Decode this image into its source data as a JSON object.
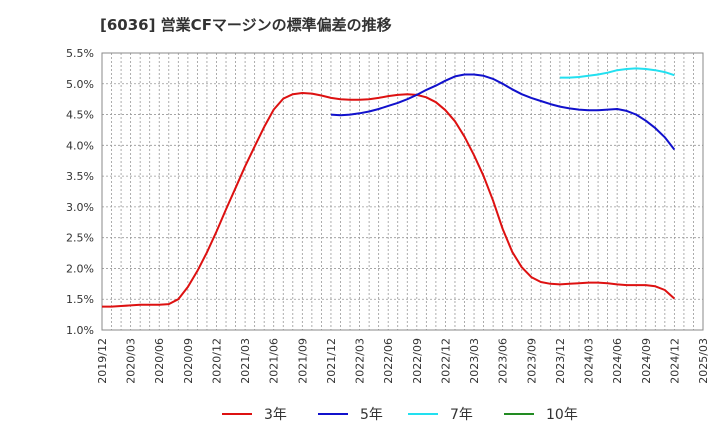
{
  "chart_data": {
    "type": "line",
    "title": "[6036]  営業CFマージンの標準偏差の推移",
    "xlabel": "",
    "ylabel": "",
    "x_ticks": [
      "2019/12",
      "2020/03",
      "2020/06",
      "2020/09",
      "2020/12",
      "2021/03",
      "2021/06",
      "2021/09",
      "2021/12",
      "2022/03",
      "2022/06",
      "2022/09",
      "2022/12",
      "2023/03",
      "2023/06",
      "2023/09",
      "2023/12",
      "2024/03",
      "2024/06",
      "2024/09",
      "2024/12",
      "2025/03"
    ],
    "y_ticks": [
      "1.0%",
      "1.5%",
      "2.0%",
      "2.5%",
      "3.0%",
      "3.5%",
      "4.0%",
      "4.5%",
      "5.0%",
      "5.5%"
    ],
    "ylim": [
      1.0,
      5.5
    ],
    "grid": true,
    "legend_position": "bottom",
    "series": [
      {
        "name": "3年",
        "color": "#dd1111",
        "x": [
          "2019/12",
          "2020/01",
          "2020/02",
          "2020/03",
          "2020/04",
          "2020/05",
          "2020/06",
          "2020/07",
          "2020/08",
          "2020/09",
          "2020/10",
          "2020/11",
          "2020/12",
          "2021/01",
          "2021/02",
          "2021/03",
          "2021/04",
          "2021/05",
          "2021/06",
          "2021/07",
          "2021/08",
          "2021/09",
          "2021/10",
          "2021/11",
          "2021/12",
          "2022/01",
          "2022/02",
          "2022/03",
          "2022/04",
          "2022/05",
          "2022/06",
          "2022/07",
          "2022/08",
          "2022/09",
          "2022/10",
          "2022/11",
          "2022/12",
          "2023/01",
          "2023/02",
          "2023/03",
          "2023/04",
          "2023/05",
          "2023/06",
          "2023/07",
          "2023/08",
          "2023/09",
          "2023/10",
          "2023/11",
          "2023/12",
          "2024/01",
          "2024/02",
          "2024/03",
          "2024/04",
          "2024/05",
          "2024/06",
          "2024/07",
          "2024/08",
          "2024/09",
          "2024/10",
          "2024/11",
          "2024/12"
        ],
        "values": [
          1.38,
          1.38,
          1.39,
          1.4,
          1.41,
          1.41,
          1.41,
          1.42,
          1.5,
          1.7,
          1.96,
          2.26,
          2.6,
          2.96,
          3.31,
          3.66,
          3.98,
          4.3,
          4.58,
          4.76,
          4.83,
          4.85,
          4.84,
          4.81,
          4.77,
          4.75,
          4.74,
          4.74,
          4.75,
          4.77,
          4.8,
          4.82,
          4.83,
          4.82,
          4.78,
          4.7,
          4.57,
          4.39,
          4.14,
          3.84,
          3.5,
          3.1,
          2.64,
          2.27,
          2.02,
          1.86,
          1.78,
          1.75,
          1.74,
          1.75,
          1.76,
          1.77,
          1.77,
          1.76,
          1.74,
          1.73,
          1.73,
          1.73,
          1.71,
          1.65,
          1.51
        ]
      },
      {
        "name": "5年",
        "color": "#1111cc",
        "x": [
          "2021/12",
          "2022/01",
          "2022/02",
          "2022/03",
          "2022/04",
          "2022/05",
          "2022/06",
          "2022/07",
          "2022/08",
          "2022/09",
          "2022/10",
          "2022/11",
          "2022/12",
          "2023/01",
          "2023/02",
          "2023/03",
          "2023/04",
          "2023/05",
          "2023/06",
          "2023/07",
          "2023/08",
          "2023/09",
          "2023/10",
          "2023/11",
          "2023/12",
          "2024/01",
          "2024/02",
          "2024/03",
          "2024/04",
          "2024/05",
          "2024/06",
          "2024/07",
          "2024/08",
          "2024/09",
          "2024/10",
          "2024/11",
          "2024/12"
        ],
        "values": [
          4.5,
          4.49,
          4.5,
          4.52,
          4.55,
          4.59,
          4.64,
          4.69,
          4.75,
          4.82,
          4.9,
          4.97,
          5.05,
          5.12,
          5.15,
          5.15,
          5.13,
          5.08,
          5.0,
          4.91,
          4.83,
          4.77,
          4.72,
          4.67,
          4.63,
          4.6,
          4.58,
          4.57,
          4.57,
          4.58,
          4.59,
          4.56,
          4.5,
          4.4,
          4.28,
          4.13,
          3.93
        ]
      },
      {
        "name": "7年",
        "color": "#22e0f0",
        "x": [
          "2023/12",
          "2024/01",
          "2024/02",
          "2024/03",
          "2024/04",
          "2024/05",
          "2024/06",
          "2024/07",
          "2024/08",
          "2024/09",
          "2024/10",
          "2024/11",
          "2024/12"
        ],
        "values": [
          5.1,
          5.1,
          5.11,
          5.13,
          5.15,
          5.18,
          5.22,
          5.24,
          5.25,
          5.24,
          5.22,
          5.19,
          5.14
        ]
      },
      {
        "name": "10年",
        "color": "#228b22",
        "x": [],
        "values": []
      }
    ]
  }
}
